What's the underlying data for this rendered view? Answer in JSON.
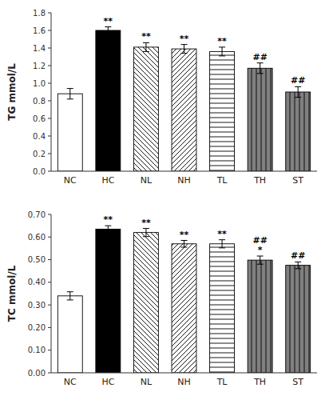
{
  "chart_data": [
    {
      "type": "bar",
      "categories": [
        "NC",
        "HC",
        "NL",
        "NH",
        "TL",
        "TH",
        "ST"
      ],
      "values": [
        0.88,
        1.6,
        1.41,
        1.39,
        1.36,
        1.17,
        0.9
      ],
      "errors": [
        0.06,
        0.04,
        0.05,
        0.05,
        0.05,
        0.06,
        0.06
      ],
      "colors": [
        "white",
        "black",
        "white",
        "white",
        "white",
        "#808080",
        "#808080"
      ],
      "ylabel": "TG mmol/L",
      "ylim": [
        0,
        1.8
      ],
      "yticks": [
        {
          "value": 0.0,
          "label": "0.0"
        },
        0.2,
        0.4,
        0.6,
        0.8,
        {
          "value": 1.0,
          "label": "1.0"
        },
        1.2,
        1.4,
        1.6,
        1.8
      ],
      "annotations": [
        null,
        [
          "**"
        ],
        [
          "**"
        ],
        [
          "**"
        ],
        [
          "**"
        ],
        [
          "##"
        ],
        [
          "##"
        ]
      ],
      "grid": false
    },
    {
      "type": "bar",
      "categories": [
        "NC",
        "HC",
        "NL",
        "NH",
        "TL",
        "TH",
        "ST"
      ],
      "values": [
        0.34,
        0.635,
        0.62,
        0.57,
        0.57,
        0.498,
        0.475
      ],
      "errors": [
        0.018,
        0.015,
        0.018,
        0.015,
        0.018,
        0.018,
        0.015
      ],
      "colors": [
        "white",
        "black",
        "white",
        "white",
        "white",
        "#808080",
        "#808080"
      ],
      "ylabel": "TC mmol/L",
      "ylim": [
        0,
        0.7
      ],
      "yticks": [
        {
          "value": 0.0,
          "label": "0.00"
        },
        {
          "value": 0.1,
          "label": "0.10"
        },
        {
          "value": 0.2,
          "label": "0.20"
        },
        {
          "value": 0.3,
          "label": "0.30"
        },
        {
          "value": 0.4,
          "label": "0.40"
        },
        {
          "value": 0.5,
          "label": "0.50"
        },
        {
          "value": 0.6,
          "label": "0.60"
        },
        {
          "value": 0.7,
          "label": "0.70"
        }
      ],
      "annotations": [
        null,
        [
          "**"
        ],
        [
          "**"
        ],
        [
          "**"
        ],
        [
          "**"
        ],
        [
          "*",
          "##"
        ],
        [
          "##"
        ]
      ],
      "grid": false
    }
  ]
}
